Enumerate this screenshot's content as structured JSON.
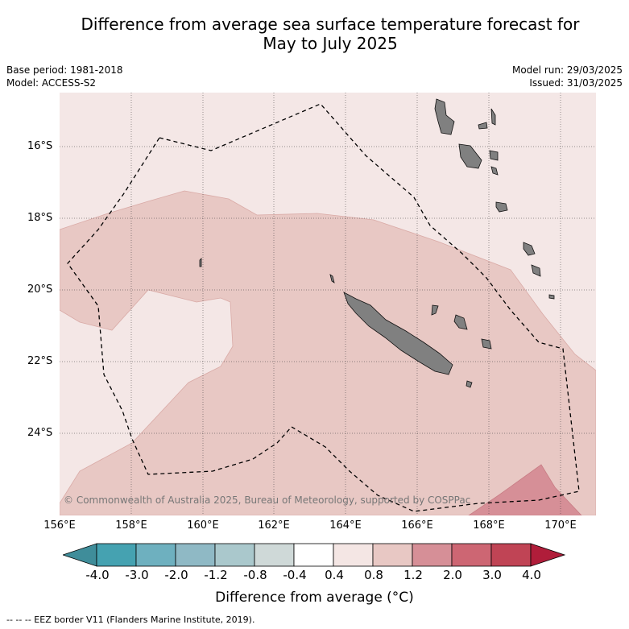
{
  "title": {
    "line1": "Difference from average sea surface temperature forecast for",
    "line2": "May to July 2025"
  },
  "meta": {
    "base_period": "Base period: 1981-2018",
    "model": "Model: ACCESS-S2",
    "model_run": "Model run: 29/03/2025",
    "issued": "Issued: 31/03/2025"
  },
  "map": {
    "lon_range": [
      156,
      171
    ],
    "lat_range": [
      -26.3,
      -14.5
    ],
    "lat_ticks": [
      "16°S",
      "18°S",
      "20°S",
      "22°S",
      "24°S"
    ],
    "lon_ticks": [
      "156°E",
      "158°E",
      "160°E",
      "162°E",
      "164°E",
      "166°E",
      "168°E",
      "170°E"
    ],
    "land_color": "#808080",
    "copyright": "© Commonwealth of Australia 2025, Bureau of Meteorology, supported by COSPPac"
  },
  "colorbar": {
    "ticks": [
      "-4.0",
      "-3.0",
      "-2.0",
      "-1.2",
      "-0.8",
      "-0.4",
      "0.4",
      "0.8",
      "1.2",
      "2.0",
      "3.0",
      "4.0"
    ],
    "colors": [
      "#3f8d9a",
      "#45a2b1",
      "#6eb0bf",
      "#8fb9c5",
      "#aac8cc",
      "#cfd9d8",
      "#ffffff",
      "#f4e6e4",
      "#e8c8c4",
      "#d68f97",
      "#cd6673",
      "#c04455",
      "#b01d3a"
    ],
    "label": "Difference from average (°C)"
  },
  "footer": "-- -- -- EEZ border V11 (Flanders Marine Institute, 2019)."
}
